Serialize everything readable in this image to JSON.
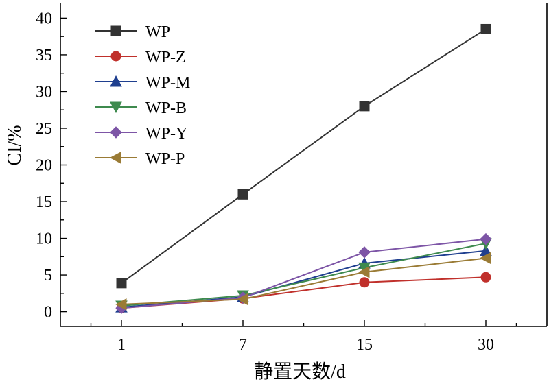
{
  "chart_data": {
    "type": "line",
    "xlabel": "静置天数/d",
    "ylabel": "CI/%",
    "x": [
      "1",
      "7",
      "15",
      "30"
    ],
    "ylim": [
      -2,
      42
    ],
    "yticks": [
      0,
      5,
      10,
      15,
      20,
      25,
      30,
      35,
      40
    ],
    "grid": false,
    "legend_position": "top-left",
    "series": [
      {
        "name": "WP",
        "color": "#333333",
        "marker": "square",
        "values": [
          3.9,
          16.0,
          28.0,
          38.5
        ]
      },
      {
        "name": "WP-Z",
        "color": "#c0302b",
        "marker": "circle",
        "values": [
          0.5,
          1.8,
          4.0,
          4.7
        ]
      },
      {
        "name": "WP-M",
        "color": "#1f3f8f",
        "marker": "triangle-up",
        "values": [
          0.6,
          2.0,
          6.6,
          8.3
        ]
      },
      {
        "name": "WP-B",
        "color": "#3e8a4e",
        "marker": "triangle-down",
        "values": [
          0.8,
          2.2,
          6.0,
          9.3
        ]
      },
      {
        "name": "WP-Y",
        "color": "#7d55a6",
        "marker": "diamond",
        "values": [
          0.5,
          1.9,
          8.1,
          9.9
        ]
      },
      {
        "name": "WP-P",
        "color": "#9a7b35",
        "marker": "triangle-left",
        "values": [
          1.0,
          1.7,
          5.4,
          7.3
        ]
      }
    ]
  }
}
